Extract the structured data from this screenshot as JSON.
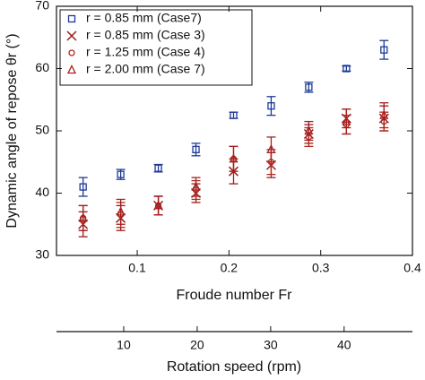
{
  "chart_data": {
    "type": "scatter",
    "xlabel": "Froude number Fr",
    "ylabel": "Dynamic angle of repose θr (°)",
    "x2label": "Rotation speed (rpm)",
    "x": [
      0.041,
      0.082,
      0.123,
      0.164,
      0.205,
      0.246,
      0.287,
      0.328,
      0.369
    ],
    "xlim": [
      0.012,
      0.4
    ],
    "xticks": [
      0.1,
      0.2,
      0.3,
      0.4
    ],
    "ylim": [
      30,
      70
    ],
    "yticks": [
      30,
      40,
      50,
      60,
      70
    ],
    "x2lim": [
      0.85,
      49.3
    ],
    "x2ticks": [
      10,
      20,
      30,
      40
    ],
    "legend": "upper left",
    "series": [
      {
        "name": "r = 0.85 mm (Case7)",
        "color": "#1c3a96",
        "marker": "square",
        "values": [
          41,
          43,
          44,
          47,
          52.5,
          54,
          57,
          60,
          63
        ],
        "errors": [
          1.5,
          0.8,
          0.6,
          1,
          0.5,
          1.5,
          0.8,
          0.4,
          1.5
        ]
      },
      {
        "name": "r = 0.85 mm (Case 3)",
        "color": "#9b1c1c",
        "marker": "x",
        "values": [
          35,
          36,
          38,
          40,
          43.5,
          44.5,
          49.5,
          52,
          52
        ],
        "errors": [
          2,
          2,
          1.5,
          1.5,
          2,
          2,
          1.5,
          1.5,
          2
        ]
      },
      {
        "name": "r = 1.25 mm (Case 4)",
        "color": "#b02a1e",
        "marker": "circle",
        "values": [
          36,
          36.5,
          38,
          40.5,
          45.5,
          45,
          49,
          51,
          51.5
        ],
        "errors": [
          2,
          2,
          1.5,
          1.5,
          2,
          2,
          1.5,
          1.5,
          1.5
        ]
      },
      {
        "name": "r = 2.00 mm (Case 7)",
        "color": "#a52020",
        "marker": "triangle",
        "values": [
          36,
          37,
          38,
          41,
          45.5,
          47,
          50,
          51.5,
          52.5
        ],
        "errors": [
          2,
          2,
          1.5,
          1.5,
          2,
          2,
          1.5,
          2,
          2
        ]
      }
    ]
  }
}
